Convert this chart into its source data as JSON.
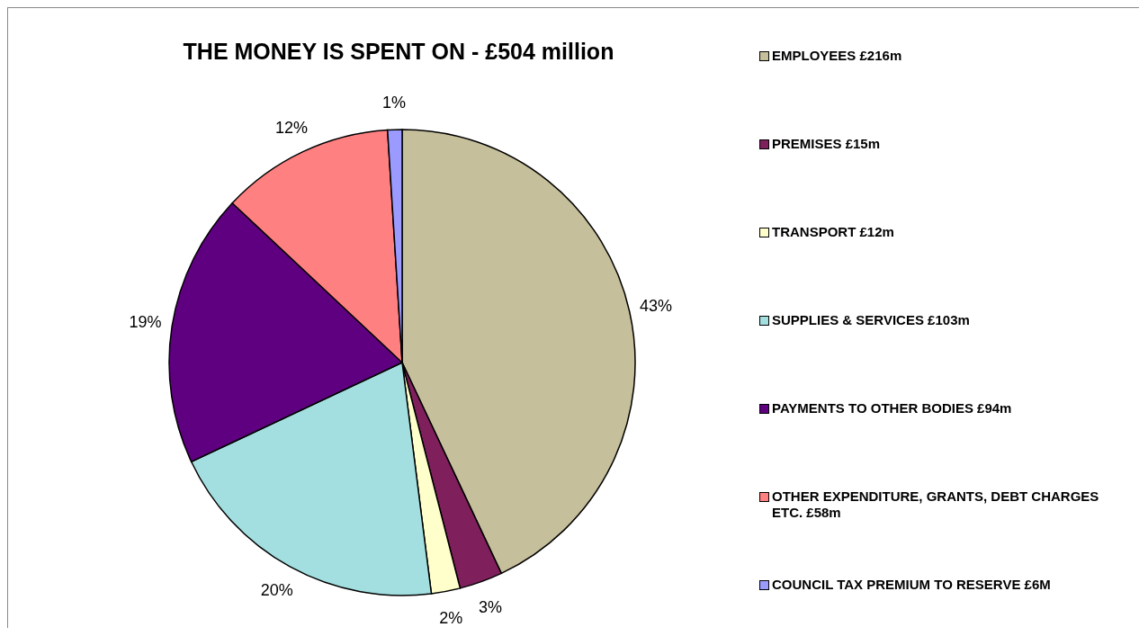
{
  "chart_data": {
    "type": "pie",
    "title": "THE MONEY IS SPENT ON - £504 million",
    "categories": [
      "EMPLOYEES £216m",
      "PREMISES £15m",
      "TRANSPORT £12m",
      "SUPPLIES & SERVICES £103m",
      "PAYMENTS TO OTHER BODIES £94m",
      "OTHER EXPENDITURE, GRANTS, DEBT CHARGES ETC. £58m",
      "COUNCIL TAX PREMIUM TO RESERVE £6M"
    ],
    "values": [
      43,
      3,
      2,
      20,
      19,
      12,
      1
    ],
    "value_labels": [
      "43%",
      "3%",
      "2%",
      "20%",
      "19%",
      "12%",
      "1%"
    ],
    "colors": [
      "#c6bf9b",
      "#7f1f5c",
      "#ffffcc",
      "#a3dfe0",
      "#5f0080",
      "#ff8080",
      "#9b9bff"
    ],
    "legend": "right"
  }
}
